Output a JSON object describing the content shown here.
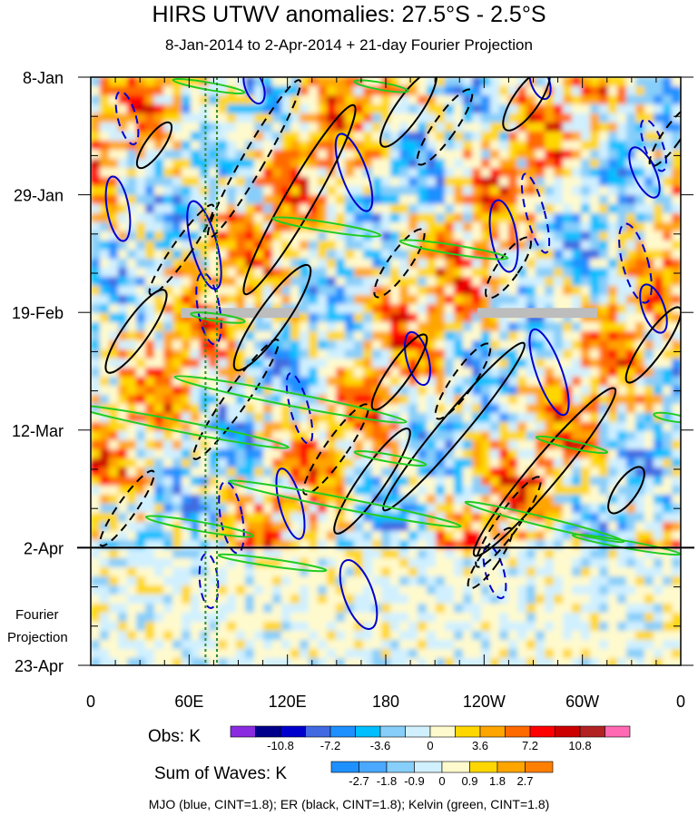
{
  "title": "HIRS UTWV anomalies: 27.5°S - 2.5°S",
  "subtitle": "8-Jan-2014 to 2-Apr-2014 + 21-day Fourier Projection",
  "chart_data": {
    "type": "heatmap",
    "x_axis": {
      "ticks": [
        "0",
        "60E",
        "120E",
        "180",
        "120W",
        "60W",
        "0"
      ],
      "tick_lon": [
        0,
        60,
        120,
        180,
        240,
        300,
        360
      ],
      "range_deg": [
        0,
        360
      ]
    },
    "y_axis": {
      "ticks": [
        "8-Jan",
        "29-Jan",
        "19-Feb",
        "12-Mar",
        "2-Apr",
        "23-Apr"
      ],
      "tick_day": [
        0,
        21,
        42,
        63,
        84,
        105
      ],
      "range_day": [
        0,
        105
      ],
      "direction": "time increases downward"
    },
    "projection_label": [
      "Fourier",
      "Projection"
    ],
    "obs_end_day": 84,
    "obs_colorbar": {
      "label": "Obs: K",
      "tick_labels": [
        "-10.8",
        "-7.2",
        "-3.6",
        "0",
        "3.6",
        "7.2",
        "10.8"
      ],
      "colors": [
        "#8a2be2",
        "#00008b",
        "#0000cd",
        "#4169e1",
        "#1e90ff",
        "#00bfff",
        "#87cefa",
        "#d0f0ff",
        "#fffacd",
        "#ffd700",
        "#ffa500",
        "#ff6a00",
        "#ff0000",
        "#cd0000",
        "#b22222",
        "#ff69b4"
      ]
    },
    "waves_colorbar": {
      "label": "Sum of Waves: K",
      "tick_labels": [
        "-2.7",
        "-1.8",
        "-0.9",
        "0",
        "0.9",
        "1.8",
        "2.7"
      ],
      "colors": [
        "#1e90ff",
        "#4aa8ff",
        "#87cefa",
        "#d0f0ff",
        "#fffacd",
        "#ffd700",
        "#ffa500",
        "#ff7f00"
      ]
    },
    "contour_legend": "MJO (blue, CINT=1.8); ER (black, CINT=1.8); Kelvin (green, CINT=1.8)",
    "series_colors": {
      "mjo": "#0000cd",
      "er": "#000000",
      "kelvin": "#22cc22"
    }
  }
}
